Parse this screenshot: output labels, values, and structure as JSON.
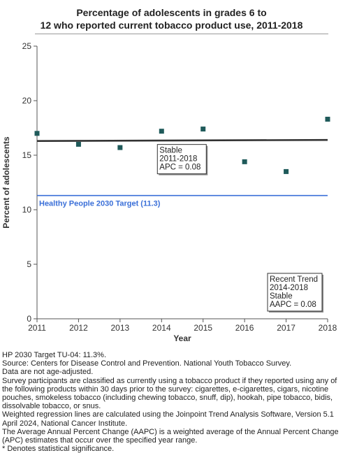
{
  "title_lines": [
    "Percentage of adolescents in grades 6 to",
    "12 who reported current tobacco product use, 2011-2018"
  ],
  "chart_data": {
    "type": "scatter",
    "title": "Percentage of adolescents in grades 6 to 12 who reported current tobacco product use, 2011-2018",
    "xlabel": "Year",
    "ylabel": "Percent of adolescents",
    "x": [
      2011,
      2012,
      2013,
      2014,
      2015,
      2016,
      2017,
      2018
    ],
    "y": [
      17.0,
      16.0,
      15.7,
      17.2,
      17.4,
      14.4,
      13.5,
      18.3
    ],
    "xlim": [
      2011,
      2018
    ],
    "ylim": [
      0,
      25
    ],
    "xticks": [
      2011,
      2012,
      2013,
      2014,
      2015,
      2016,
      2017,
      2018
    ],
    "yticks": [
      0,
      5,
      10,
      15,
      20,
      25
    ],
    "grid": false,
    "marker_color": "#1f5a5a",
    "trend_line": {
      "x": [
        2011,
        2018
      ],
      "y": [
        16.3,
        16.4
      ],
      "color": "#333333"
    },
    "target_line": {
      "value": 11.3,
      "label": "Healthy People 2030 Target (11.3)",
      "color": "#3a6fd8"
    },
    "annotation": {
      "lines": [
        "Stable",
        "2011-2018",
        "APC =  0.08"
      ],
      "anchor_x": 2014,
      "anchor_y": 15.6
    },
    "recent_trend": {
      "lines": [
        "Recent Trend",
        "2014-2018",
        "Stable",
        "AAPC =  0.08"
      ],
      "position": "bottom-right"
    }
  },
  "footnotes": [
    "HP 2030 Target TU-04: 11.3%.",
    "Source: Centers for Disease Control and Prevention. National Youth Tobacco Survey.",
    "Data are not age-adjusted.",
    "Survey participants are classified as currently using a tobacco product if they reported using any of the following products within 30 days prior to the survey: cigarettes, e-cigarettes, cigars, nicotine pouches, smokeless tobacco (including chewing tobacco, snuff, dip), hookah, pipe tobacco, bidis, dissolvable tobacco, or snus.",
    "Weighted regression lines are calculated using the Joinpoint Trend Analysis Software, Version 5.1 April 2024, National Cancer Institute.",
    "The Average Annual Percent Change (AAPC) is a weighted average of the Annual Percent Change (APC) estimates that occur over the specified year range.",
    "* Denotes statistical significance."
  ]
}
